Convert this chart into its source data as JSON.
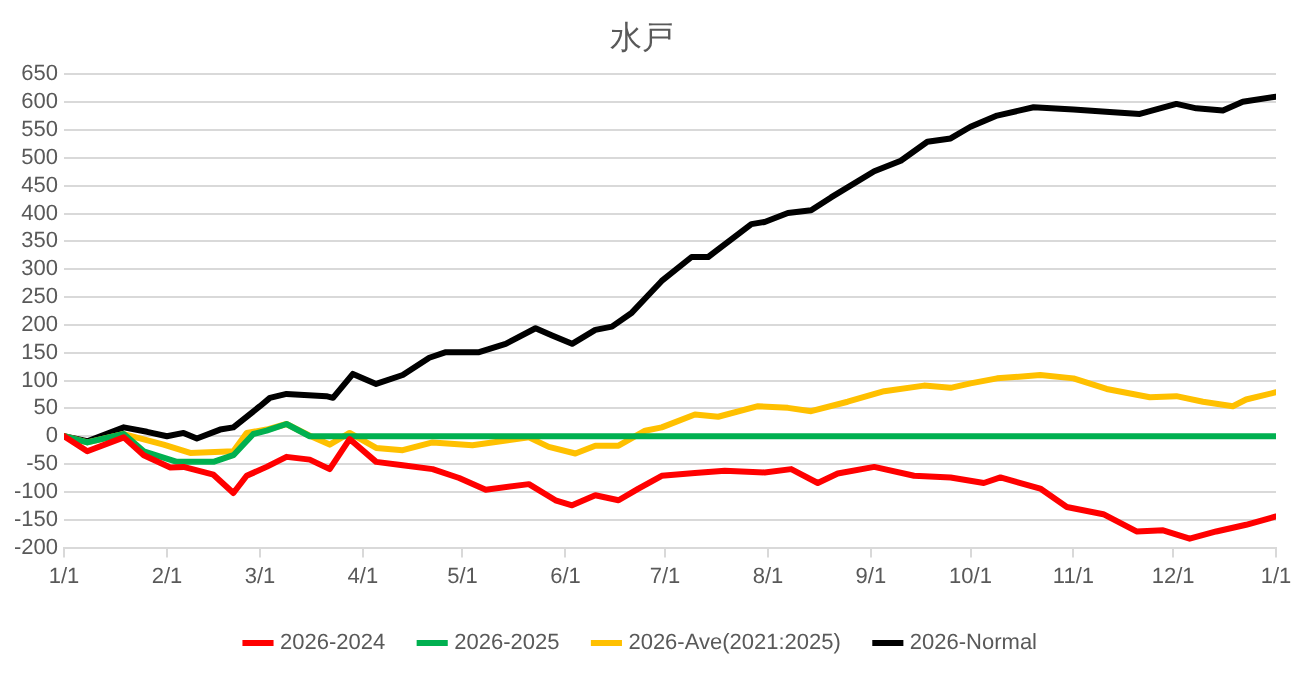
{
  "chart_data": {
    "type": "line",
    "title": "水戸",
    "xlim": [
      "2026-01-01",
      "2027-01-01"
    ],
    "xticks": [
      {
        "value": "2026-01-01",
        "label": "1/1"
      },
      {
        "value": "2026-02-01",
        "label": "2/1"
      },
      {
        "value": "2026-03-01",
        "label": "3/1"
      },
      {
        "value": "2026-04-01",
        "label": "4/1"
      },
      {
        "value": "2026-05-01",
        "label": "5/1"
      },
      {
        "value": "2026-06-01",
        "label": "6/1"
      },
      {
        "value": "2026-07-01",
        "label": "7/1"
      },
      {
        "value": "2026-08-01",
        "label": "8/1"
      },
      {
        "value": "2026-09-01",
        "label": "9/1"
      },
      {
        "value": "2026-10-01",
        "label": "10/1"
      },
      {
        "value": "2026-11-01",
        "label": "11/1"
      },
      {
        "value": "2026-12-01",
        "label": "12/1"
      },
      {
        "value": "2027-01-01",
        "label": "1/1"
      }
    ],
    "ylim": [
      -200,
      650
    ],
    "yticks": [
      -200,
      -150,
      -100,
      -50,
      0,
      50,
      100,
      150,
      200,
      250,
      300,
      350,
      400,
      450,
      500,
      550,
      600,
      650
    ],
    "grid": "y",
    "legend": "bottom",
    "marker": "none",
    "line_style": "solid",
    "series": [
      {
        "name": "2026-2024",
        "color": "#ff0000",
        "x": [
          "2026-01-01",
          "2026-01-08",
          "2026-01-19",
          "2026-01-25",
          "2026-02-02",
          "2026-02-06",
          "2026-02-15",
          "2026-02-21",
          "2026-02-25",
          "2026-03-03",
          "2026-03-09",
          "2026-03-16",
          "2026-03-22",
          "2026-03-28",
          "2026-04-05",
          "2026-04-13",
          "2026-04-22",
          "2026-04-30",
          "2026-05-08",
          "2026-05-21",
          "2026-05-29",
          "2026-06-03",
          "2026-06-10",
          "2026-06-17",
          "2026-06-23",
          "2026-06-30",
          "2026-07-10",
          "2026-07-19",
          "2026-07-31",
          "2026-08-08",
          "2026-08-16",
          "2026-08-22",
          "2026-09-02",
          "2026-09-14",
          "2026-09-25",
          "2026-10-05",
          "2026-10-10",
          "2026-10-22",
          "2026-10-30",
          "2026-11-10",
          "2026-11-20",
          "2026-11-28",
          "2026-12-06",
          "2026-12-14",
          "2026-12-23",
          "2027-01-01"
        ],
        "values": [
          0,
          -27,
          -2,
          -34,
          -56,
          -55,
          -69,
          -102,
          -71,
          -55,
          -37,
          -42,
          -59,
          -5,
          -46,
          -52,
          -59,
          -75,
          -96,
          -86,
          -115,
          -124,
          -106,
          -115,
          -94,
          -71,
          -66,
          -62,
          -65,
          -59,
          -84,
          -67,
          -55,
          -71,
          -74,
          -84,
          -74,
          -94,
          -127,
          -140,
          -171,
          -169,
          -184,
          -171,
          -159,
          -144
        ]
      },
      {
        "name": "2026-2025",
        "color": "#00b050",
        "x": [
          "2026-01-01",
          "2026-01-08",
          "2026-01-19",
          "2026-01-25",
          "2026-02-04",
          "2026-02-15",
          "2026-02-21",
          "2026-02-27",
          "2026-03-03",
          "2026-03-09",
          "2026-03-16",
          "2027-01-01"
        ],
        "values": [
          0,
          -11,
          4,
          -27,
          -46,
          -46,
          -34,
          4,
          10,
          22,
          0,
          0
        ]
      },
      {
        "name": "2026-Ave(2021:2025)",
        "color": "#ffc000",
        "x": [
          "2026-01-01",
          "2026-01-08",
          "2026-01-19",
          "2026-01-31",
          "2026-02-08",
          "2026-02-21",
          "2026-02-25",
          "2026-03-03",
          "2026-03-09",
          "2026-03-16",
          "2026-03-22",
          "2026-03-28",
          "2026-04-05",
          "2026-04-13",
          "2026-04-22",
          "2026-05-04",
          "2026-05-21",
          "2026-05-27",
          "2026-06-04",
          "2026-06-10",
          "2026-06-17",
          "2026-06-25",
          "2026-06-30",
          "2026-07-10",
          "2026-07-17",
          "2026-07-29",
          "2026-08-07",
          "2026-08-14",
          "2026-08-25",
          "2026-09-05",
          "2026-09-17",
          "2026-09-25",
          "2026-10-01",
          "2026-10-09",
          "2026-10-22",
          "2026-11-01",
          "2026-11-11",
          "2026-11-24",
          "2026-12-02",
          "2026-12-10",
          "2026-12-19",
          "2026-12-23",
          "2027-01-01"
        ],
        "values": [
          0,
          -11,
          4,
          -15,
          -30,
          -27,
          6,
          12,
          22,
          1,
          -15,
          6,
          -21,
          -25,
          -11,
          -16,
          -2,
          -19,
          -31,
          -17,
          -17,
          10,
          16,
          39,
          35,
          54,
          51,
          45,
          62,
          81,
          91,
          87,
          95,
          104,
          110,
          104,
          85,
          70,
          72,
          62,
          54,
          66,
          79
        ]
      },
      {
        "name": "2026-Normal",
        "color": "#000000",
        "x": [
          "2026-01-01",
          "2026-01-08",
          "2026-01-19",
          "2026-01-26",
          "2026-02-01",
          "2026-02-06",
          "2026-02-10",
          "2026-02-17",
          "2026-02-21",
          "2026-03-01",
          "2026-03-04",
          "2026-03-09",
          "2026-03-21",
          "2026-03-23",
          "2026-03-29",
          "2026-04-05",
          "2026-04-13",
          "2026-04-21",
          "2026-04-26",
          "2026-05-06",
          "2026-05-14",
          "2026-05-23",
          "2026-05-28",
          "2026-06-03",
          "2026-06-10",
          "2026-06-15",
          "2026-06-21",
          "2026-06-27",
          "2026-06-30",
          "2026-07-09",
          "2026-07-14",
          "2026-07-27",
          "2026-07-31",
          "2026-08-07",
          "2026-08-14",
          "2026-08-20",
          "2026-09-02",
          "2026-09-10",
          "2026-09-18",
          "2026-09-25",
          "2026-10-01",
          "2026-10-09",
          "2026-10-20",
          "2026-11-01",
          "2026-11-13",
          "2026-11-21",
          "2026-12-02",
          "2026-12-08",
          "2026-12-16",
          "2026-12-22",
          "2027-01-01"
        ],
        "values": [
          0,
          -9,
          16,
          8,
          0,
          6,
          -4,
          12,
          16,
          54,
          69,
          76,
          72,
          69,
          112,
          94,
          110,
          141,
          151,
          151,
          166,
          194,
          181,
          166,
          191,
          197,
          222,
          260,
          279,
          322,
          322,
          381,
          385,
          401,
          406,
          429,
          476,
          495,
          529,
          535,
          556,
          576,
          591,
          587,
          582,
          579,
          597,
          589,
          585,
          601,
          610
        ]
      }
    ]
  }
}
